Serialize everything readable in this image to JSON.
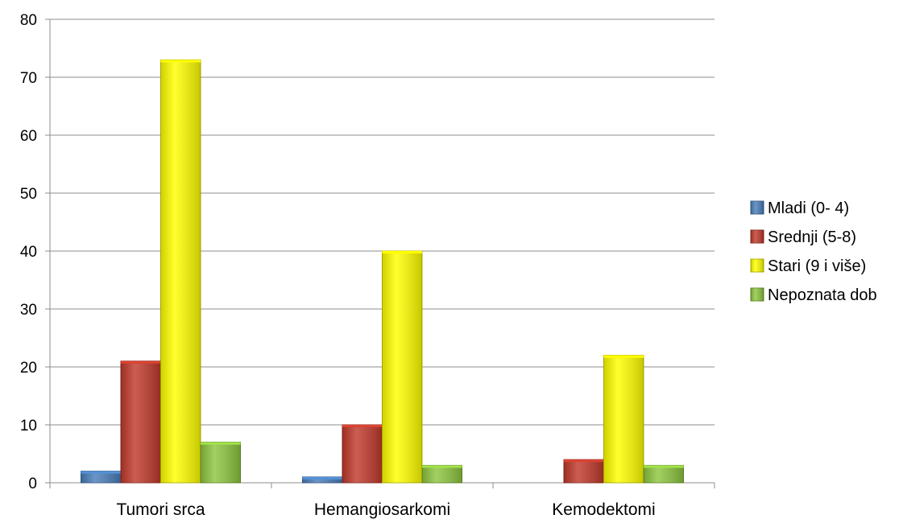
{
  "chart_data": {
    "type": "bar",
    "categories": [
      "Tumori srca",
      "Hemangiosarkomi",
      "Kemodektomi"
    ],
    "series": [
      {
        "name": "Mladi (0- 4)",
        "values": [
          2,
          1,
          0
        ],
        "color": "#4a7ebb"
      },
      {
        "name": "Srednji (5-8)",
        "values": [
          21,
          10,
          4
        ],
        "color": "#c0392b"
      },
      {
        "name": "Stari (9 i više)",
        "values": [
          73,
          40,
          22
        ],
        "color": "#ffff00"
      },
      {
        "name": "Nepoznata dob",
        "values": [
          7,
          3,
          3
        ],
        "color": "#8dc63f"
      }
    ],
    "ylim": [
      0,
      80
    ],
    "yticks": [
      0,
      10,
      20,
      30,
      40,
      50,
      60,
      70,
      80
    ],
    "grid": true,
    "legend_position": "right",
    "title": "",
    "xlabel": "",
    "ylabel": ""
  }
}
